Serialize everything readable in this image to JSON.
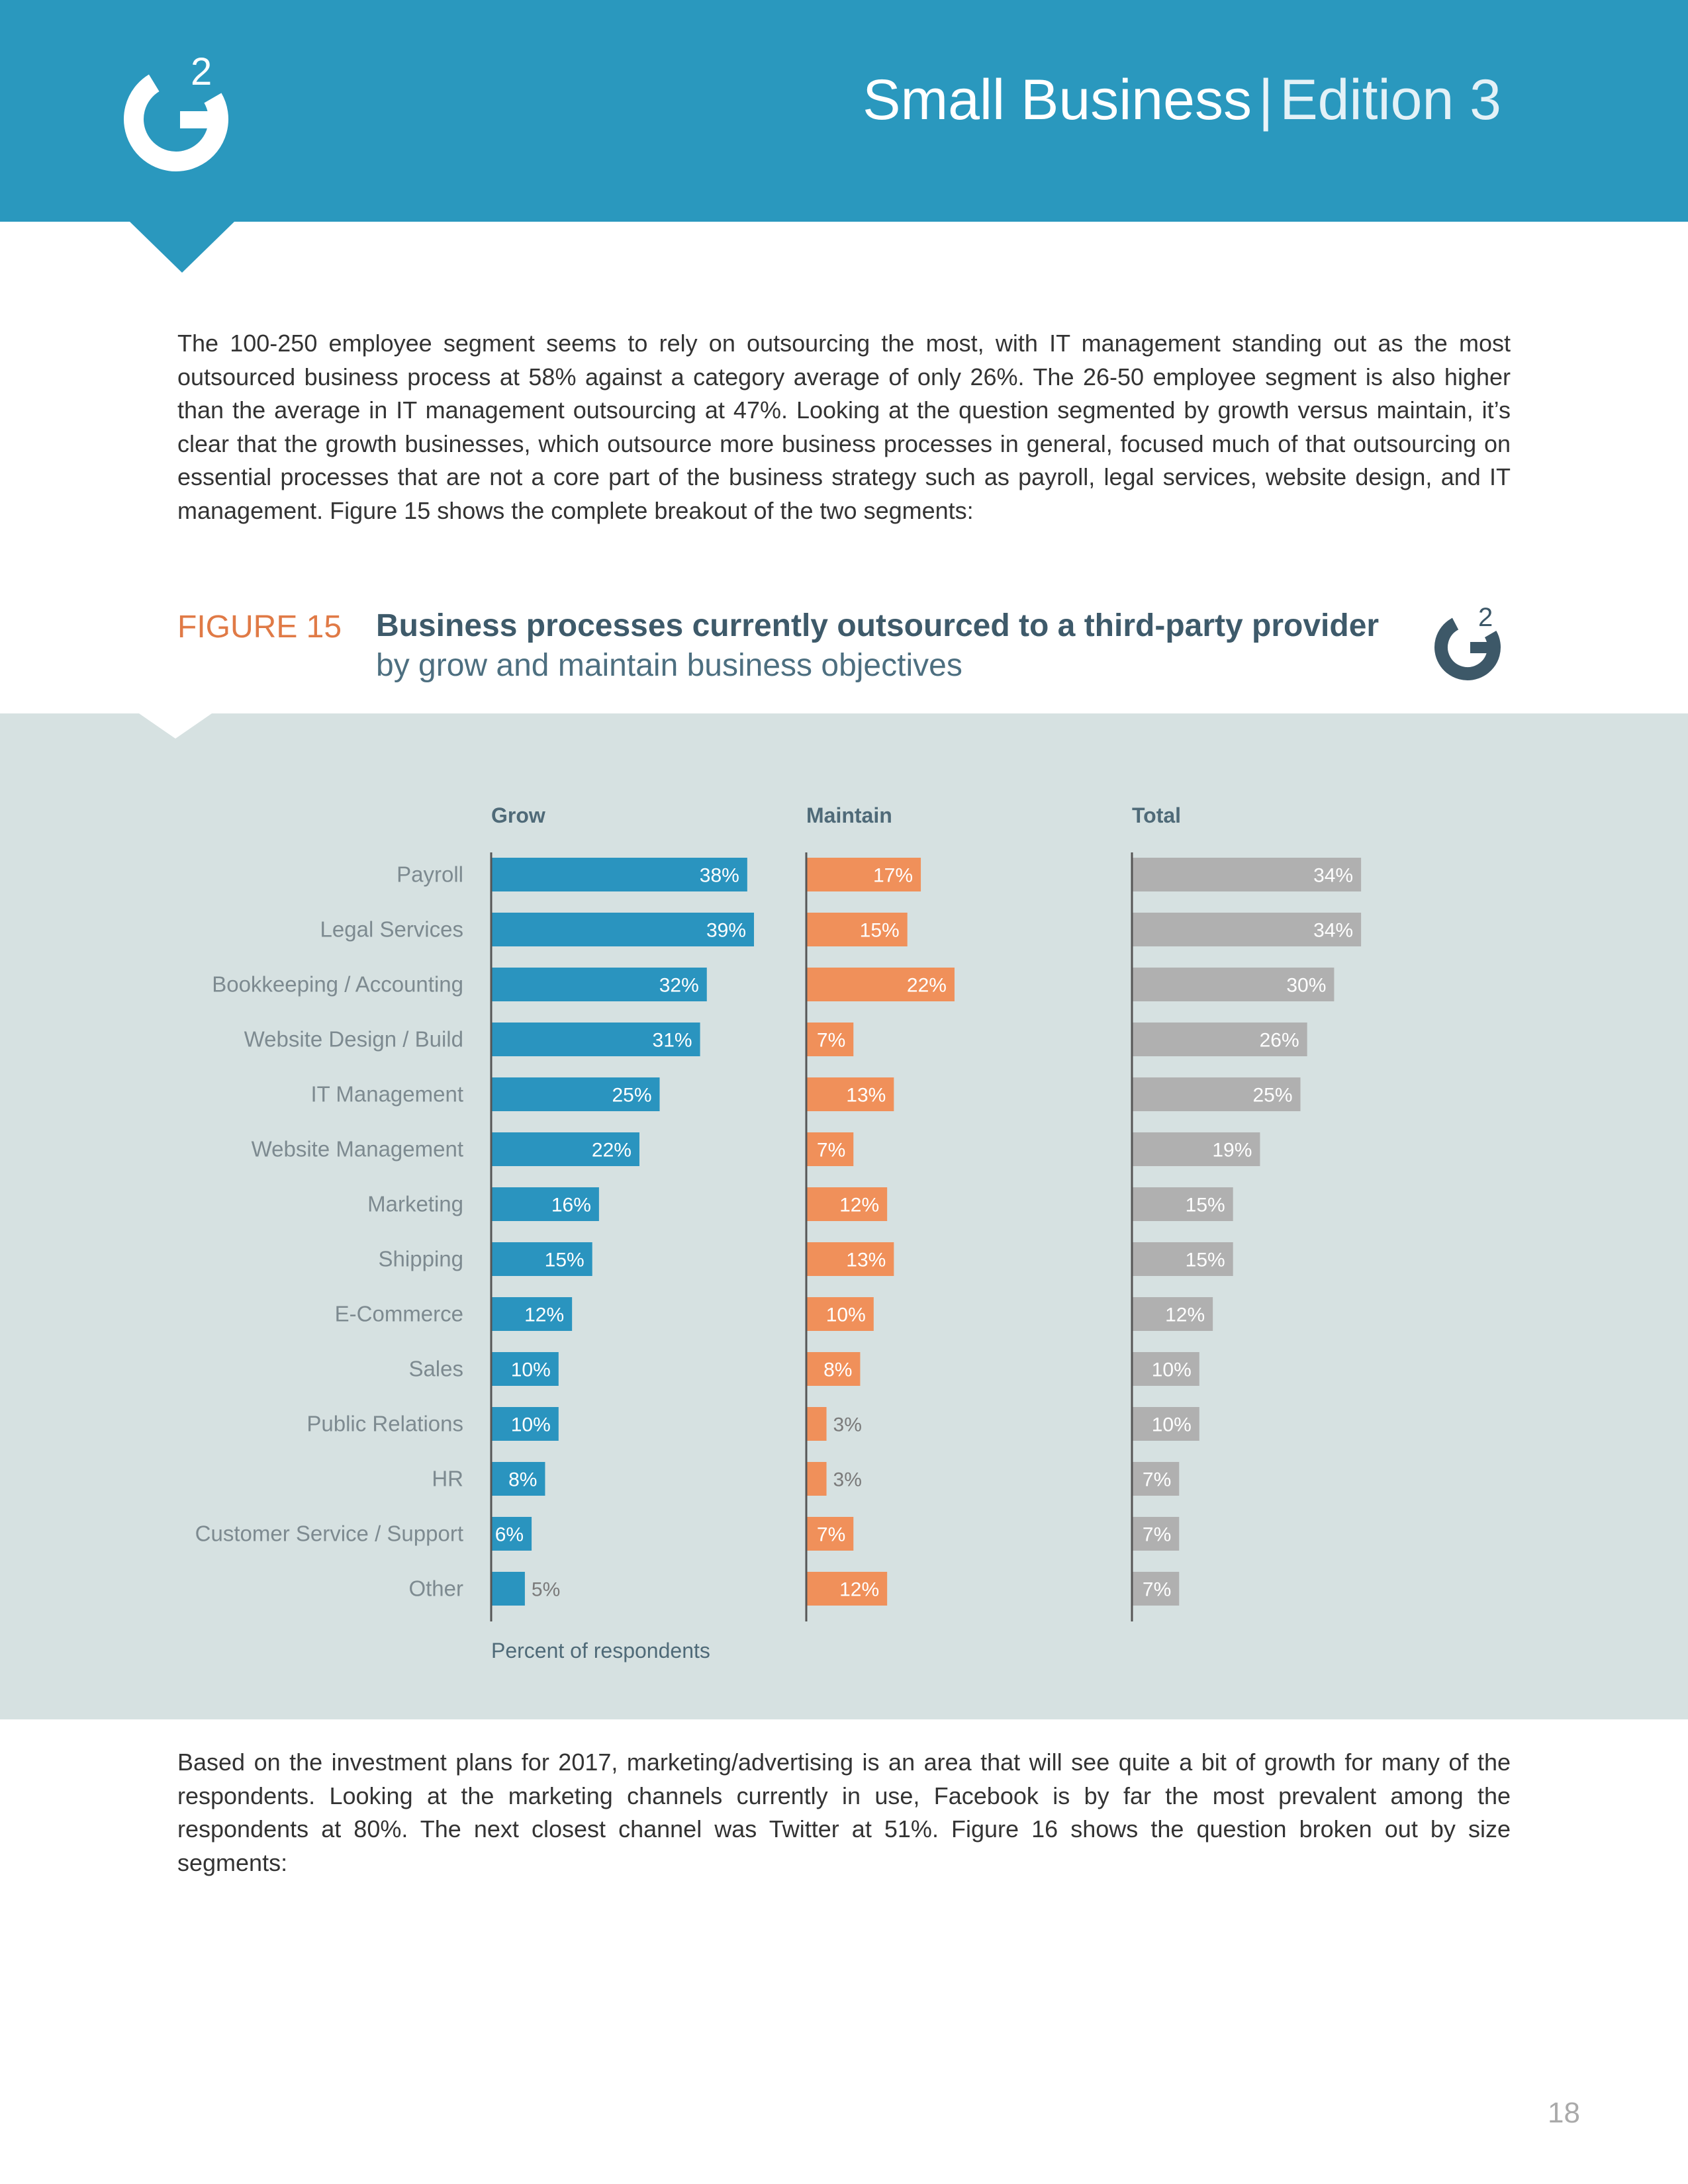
{
  "header": {
    "title": "Small Business",
    "separator": "|",
    "edition": "Edition 3",
    "logo_glyph": "G",
    "logo_superscript": "2"
  },
  "intro_paragraph": "The 100-250 employee segment seems to rely on outsourcing the most, with IT management standing out as the most outsourced business process at 58% against a category average of only 26%. The 26-50 employee segment is also higher than the average in IT management outsourcing at 47%. Looking at the question segmented by growth versus maintain, it’s clear that the growth businesses, which outsource more business processes in general, focused much of that outsourcing on essential processes that are not a core part of the business strategy such as payroll, legal services, website design, and IT management. Figure 15 shows the complete breakout of the two segments:",
  "figure": {
    "label": "FIGURE 15",
    "title": "Business processes currently outsourced to a third-party provider",
    "subtitle": "by grow and maintain business objectives"
  },
  "chart_data": {
    "type": "bar",
    "orientation": "horizontal",
    "title": "Business processes currently outsourced to a third-party provider",
    "xlabel": "Percent of respondents",
    "categories": [
      "Payroll",
      "Legal Services",
      "Bookkeeping / Accounting",
      "Website Design / Build",
      "IT Management",
      "Website Management",
      "Marketing",
      "Shipping",
      "E-Commerce",
      "Sales",
      "Public Relations",
      "HR",
      "Customer Service / Support",
      "Other"
    ],
    "series": [
      {
        "name": "Grow",
        "color": "#2a94bf",
        "values": [
          38,
          39,
          32,
          31,
          25,
          22,
          16,
          15,
          12,
          10,
          10,
          8,
          6,
          5
        ],
        "labels": [
          "38%",
          "39%",
          "32%",
          "31%",
          "25%",
          "22%",
          "16%",
          "15%",
          "12%",
          "10%",
          "10%",
          "8%",
          "6%",
          "5%"
        ]
      },
      {
        "name": "Maintain",
        "color": "#f0905a",
        "values": [
          17,
          15,
          22,
          7,
          13,
          7,
          12,
          13,
          10,
          8,
          3,
          3,
          7,
          12
        ],
        "labels": [
          "17%",
          "15%",
          "22%",
          "7%",
          "13%",
          "7%",
          "12%",
          "13%",
          "10%",
          "8%",
          "3%",
          "3%",
          "7%",
          "12%"
        ]
      },
      {
        "name": "Total",
        "color": "#b0b0b0",
        "values": [
          34,
          34,
          30,
          26,
          25,
          19,
          15,
          15,
          12,
          10,
          10,
          7,
          7,
          7
        ],
        "labels": [
          "34%",
          "34%",
          "30%",
          "26%",
          "25%",
          "19%",
          "15%",
          "15%",
          "12%",
          "10%",
          "10%",
          "7%",
          "7%",
          "7%"
        ]
      }
    ]
  },
  "closing_paragraph": "Based on the investment plans for 2017, marketing/advertising is an area that will see quite a bit of growth for many of the respondents. Looking at the marketing channels currently in use, Facebook is by far the most prevalent among the respondents at 80%. The next closest channel was Twitter at 51%. Figure 16 shows the question broken out by size segments:",
  "page_number": "18"
}
